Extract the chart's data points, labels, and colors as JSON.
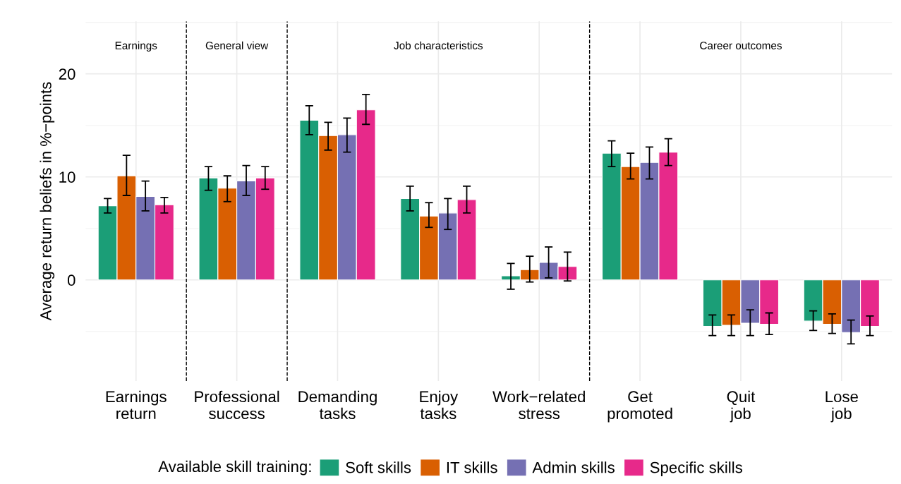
{
  "chart_data": {
    "type": "bar",
    "ylabel": "Average return beliefs in %−points",
    "categories": [
      "Earnings\nreturn",
      "Professional\nsuccess",
      "Demanding\ntasks",
      "Enjoy\ntasks",
      "Work−related\nstress",
      "Get\npromoted",
      "Quit\njob",
      "Lose\njob"
    ],
    "series": [
      {
        "name": "Soft skills",
        "color": "#1b9e77",
        "values": [
          7.2,
          9.9,
          15.5,
          7.9,
          0.4,
          12.3,
          -4.5,
          -4.0
        ],
        "errors": [
          [
            6.5,
            7.9
          ],
          [
            8.7,
            11.0
          ],
          [
            14.1,
            16.9
          ],
          [
            6.7,
            9.1
          ],
          [
            -0.9,
            1.6
          ],
          [
            11.0,
            13.5
          ],
          [
            -5.4,
            -3.4
          ],
          [
            -4.9,
            -3.0
          ]
        ]
      },
      {
        "name": "IT skills",
        "color": "#d95f02",
        "values": [
          10.1,
          8.9,
          14.0,
          6.2,
          1.0,
          11.0,
          -4.4,
          -4.3
        ],
        "errors": [
          [
            8.2,
            12.1
          ],
          [
            7.6,
            10.1
          ],
          [
            12.6,
            15.3
          ],
          [
            5.1,
            7.5
          ],
          [
            -0.2,
            2.3
          ],
          [
            9.8,
            12.3
          ],
          [
            -5.4,
            -3.4
          ],
          [
            -5.2,
            -3.3
          ]
        ]
      },
      {
        "name": "Admin skills",
        "color": "#7570b3",
        "values": [
          8.1,
          9.6,
          14.1,
          6.5,
          1.7,
          11.4,
          -4.2,
          -5.1
        ],
        "errors": [
          [
            6.7,
            9.6
          ],
          [
            8.2,
            11.1
          ],
          [
            12.4,
            15.7
          ],
          [
            4.9,
            7.9
          ],
          [
            0.2,
            3.2
          ],
          [
            9.8,
            12.9
          ],
          [
            -5.4,
            -2.9
          ],
          [
            -6.2,
            -3.9
          ]
        ]
      },
      {
        "name": "Specific skills",
        "color": "#e7298a",
        "values": [
          7.3,
          9.9,
          16.5,
          7.8,
          1.3,
          12.4,
          -4.3,
          -4.5
        ],
        "errors": [
          [
            6.5,
            8.0
          ],
          [
            8.8,
            11.0
          ],
          [
            15.1,
            18.0
          ],
          [
            6.5,
            9.1
          ],
          [
            -0.1,
            2.7
          ],
          [
            11.1,
            13.7
          ],
          [
            -5.3,
            -3.2
          ],
          [
            -5.4,
            -3.5
          ]
        ]
      }
    ],
    "ylim": [
      -9.8,
      25.1
    ],
    "yticks": [
      0,
      10,
      20
    ],
    "grid": true,
    "legend": "bottom",
    "legend_title": "Available skill training:",
    "annotations": [
      "Earnings",
      "General view",
      "Job characteristics",
      "Career outcomes"
    ]
  }
}
